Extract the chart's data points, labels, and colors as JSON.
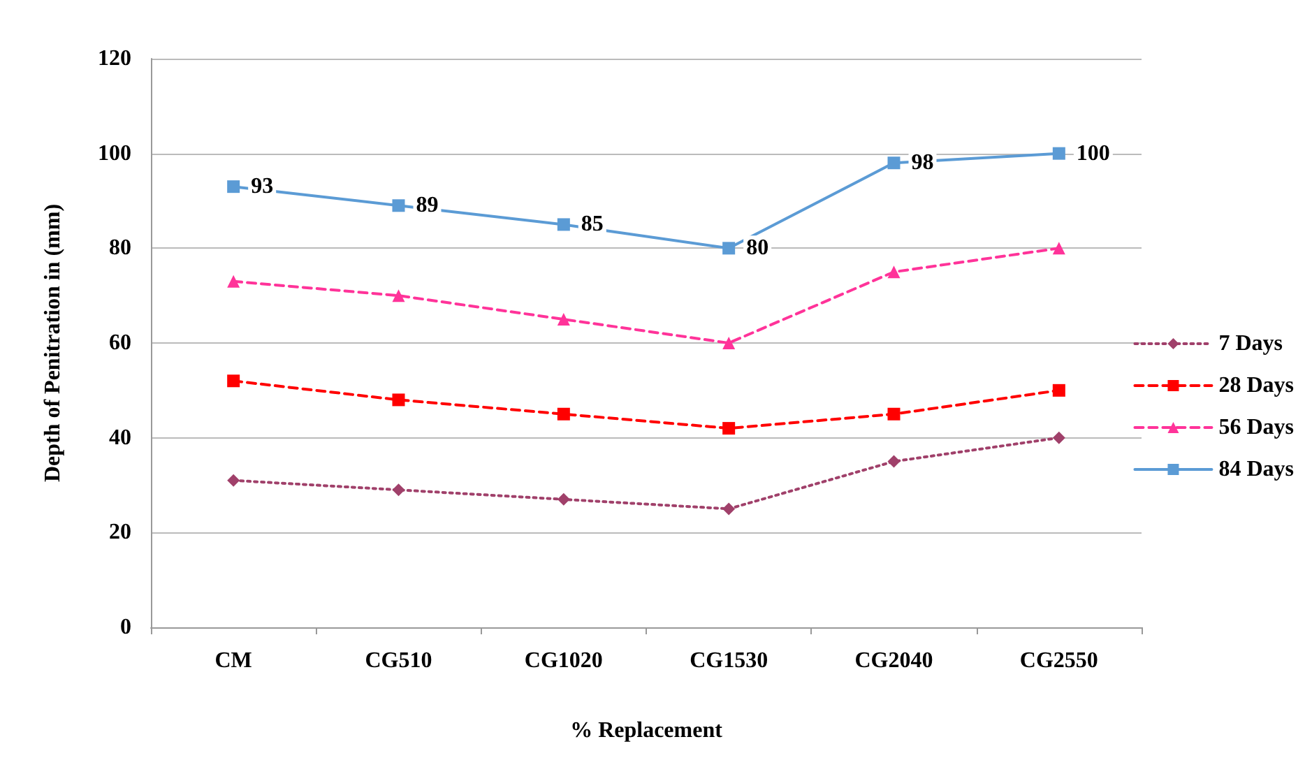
{
  "chart_data": {
    "type": "line",
    "xlabel": "% Replacement",
    "ylabel": "Depth of Penitration in (mm)",
    "categories": [
      "CM",
      "CG510",
      "CG1020",
      "CG1530",
      "CG2040",
      "CG2550"
    ],
    "series": [
      {
        "name": "7 Days",
        "color": "#a0406a",
        "values": [
          31,
          29,
          27,
          25,
          35,
          40
        ],
        "marker": "diamond",
        "line_style": "dotted"
      },
      {
        "name": "28 Days",
        "color": "#ff0000",
        "values": [
          52,
          48,
          45,
          42,
          45,
          50
        ],
        "marker": "square",
        "line_style": "dashed"
      },
      {
        "name": "56 Days",
        "color": "#ff3399",
        "values": [
          73,
          70,
          65,
          60,
          75,
          80
        ],
        "marker": "triangle",
        "line_style": "dashed"
      },
      {
        "name": "84 Days",
        "color": "#5b9bd5",
        "values": [
          93,
          89,
          85,
          80,
          98,
          100
        ],
        "marker": "square",
        "line_style": "solid",
        "value_labels": [
          "93",
          "89",
          "85",
          "80",
          "98",
          "100"
        ]
      }
    ],
    "ylim": [
      0,
      120
    ],
    "yticks": [
      0,
      20,
      40,
      60,
      80,
      100,
      120
    ],
    "grid": "y",
    "legend": "right"
  }
}
